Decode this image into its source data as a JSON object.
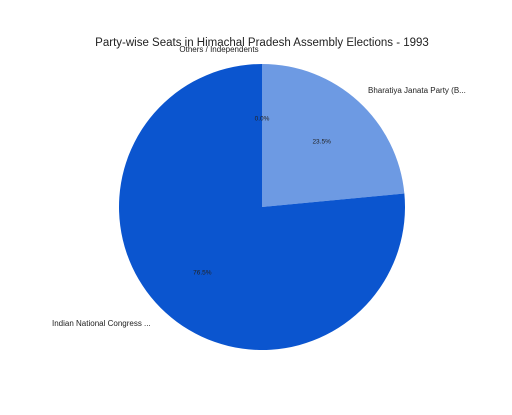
{
  "chart_data": {
    "type": "pie",
    "title": "Party-wise Seats in Himachal Pradesh Assembly Elections - 1993",
    "slices": [
      {
        "label": "Others / Independents",
        "value": 0.0,
        "percent_label": "0.0%",
        "color": "#1a56c8"
      },
      {
        "label": "Bharatiya Janata Party (B...",
        "value": 23.5,
        "percent_label": "23.5%",
        "color": "#6d9ae3"
      },
      {
        "label": "Indian National Congress ...",
        "value": 76.5,
        "percent_label": "76.5%",
        "color": "#0b55cf"
      }
    ],
    "legend": "none",
    "start_angle": "top",
    "direction": "clockwise"
  }
}
